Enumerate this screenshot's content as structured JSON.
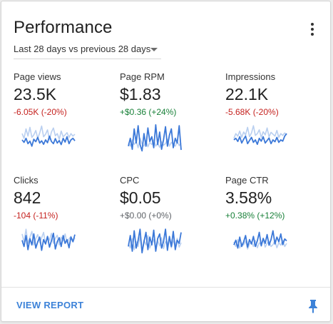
{
  "card": {
    "title": "Performance",
    "menu_icon": "more-vert-icon",
    "date_range": {
      "selected": "Last 28 days vs previous 28 days",
      "icon": "dropdown-caret-icon"
    }
  },
  "colors": {
    "current_series": "#3b78d8",
    "previous_series": "#b9cff0",
    "negative_change": "#c5221f",
    "positive_change": "#188038",
    "neutral_change": "#5f6368",
    "link": "#3c82d8"
  },
  "metrics": [
    {
      "key": "page_views",
      "label": "Page views",
      "value": "23.5K",
      "change": "-6.05K (-20%)",
      "trend": "negative",
      "sparkline": {
        "current": [
          0.5,
          0.42,
          0.55,
          0.38,
          0.46,
          0.3,
          0.52,
          0.44,
          0.58,
          0.4,
          0.47,
          0.36,
          0.5,
          0.41,
          0.62,
          0.45,
          0.38,
          0.54,
          0.4,
          0.48,
          0.35,
          0.55,
          0.43,
          0.6,
          0.38,
          0.5,
          0.55,
          0.47
        ],
        "previous": [
          0.7,
          0.55,
          0.85,
          0.62,
          0.9,
          0.58,
          0.66,
          0.8,
          0.55,
          0.72,
          0.94,
          0.6,
          0.68,
          0.82,
          0.5,
          0.75,
          0.88,
          0.63,
          0.7,
          0.52,
          0.78,
          0.6,
          0.66,
          0.73,
          0.58,
          0.7,
          0.62,
          0.68
        ]
      }
    },
    {
      "key": "page_rpm",
      "label": "Page RPM",
      "value": "$1.83",
      "change": "+$0.36 (+24%)",
      "trend": "positive",
      "sparkline": {
        "current": [
          0.3,
          0.55,
          0.2,
          0.85,
          0.4,
          0.95,
          0.35,
          0.15,
          0.7,
          0.3,
          0.88,
          0.45,
          0.6,
          0.25,
          0.98,
          0.35,
          0.75,
          0.2,
          0.5,
          0.92,
          0.3,
          0.65,
          0.85,
          0.25,
          0.55,
          0.4,
          0.95,
          0.18
        ],
        "previous": [
          0.4,
          0.3,
          0.5,
          0.35,
          0.45,
          0.25,
          0.55,
          0.38,
          0.3,
          0.48,
          0.28,
          0.42,
          0.35,
          0.5,
          0.3,
          0.4,
          0.26,
          0.45,
          0.33,
          0.38,
          0.52,
          0.3,
          0.42,
          0.36,
          0.3,
          0.44,
          0.32,
          0.4
        ]
      }
    },
    {
      "key": "impressions",
      "label": "Impressions",
      "value": "22.1K",
      "change": "-5.68K (-20%)",
      "trend": "negative",
      "sparkline": {
        "current": [
          0.5,
          0.55,
          0.45,
          0.6,
          0.4,
          0.52,
          0.62,
          0.38,
          0.48,
          0.58,
          0.42,
          0.5,
          0.36,
          0.55,
          0.46,
          0.6,
          0.4,
          0.48,
          0.56,
          0.38,
          0.5,
          0.44,
          0.58,
          0.42,
          0.5,
          0.46,
          0.62,
          0.7
        ],
        "previous": [
          0.55,
          0.7,
          0.62,
          0.78,
          0.58,
          0.75,
          0.66,
          0.9,
          0.6,
          0.72,
          0.95,
          0.64,
          0.7,
          0.82,
          0.58,
          0.76,
          0.66,
          0.88,
          0.6,
          0.74,
          0.68,
          0.62,
          0.8,
          0.58,
          0.7,
          0.64,
          0.72,
          0.66
        ]
      }
    },
    {
      "key": "clicks",
      "label": "Clicks",
      "value": "842",
      "change": "-104 (-11%)",
      "trend": "negative",
      "sparkline": {
        "current": [
          0.6,
          0.4,
          0.75,
          0.3,
          0.65,
          0.45,
          0.8,
          0.35,
          0.55,
          0.7,
          0.28,
          0.62,
          0.48,
          0.72,
          0.38,
          0.58,
          0.82,
          0.32,
          0.55,
          0.68,
          0.4,
          0.75,
          0.5,
          0.62,
          0.36,
          0.7,
          0.55,
          0.78
        ],
        "previous": [
          0.8,
          0.55,
          0.95,
          0.5,
          0.7,
          0.88,
          0.45,
          0.65,
          0.78,
          0.52,
          0.68,
          0.85,
          0.48,
          0.72,
          0.6,
          0.82,
          0.5,
          0.66,
          0.76,
          0.45,
          0.7,
          0.58,
          0.8,
          0.52,
          0.64,
          0.72,
          0.56,
          0.68
        ]
      }
    },
    {
      "key": "cpc",
      "label": "CPC",
      "value": "$0.05",
      "change": "+$0.00 (+0%)",
      "trend": "neutral",
      "sparkline": {
        "current": [
          0.4,
          0.75,
          0.25,
          0.9,
          0.35,
          0.6,
          0.95,
          0.2,
          0.55,
          0.85,
          0.3,
          0.7,
          0.45,
          0.92,
          0.25,
          0.65,
          0.8,
          0.35,
          0.55,
          0.95,
          0.28,
          0.72,
          0.4,
          0.88,
          0.3,
          0.6,
          0.5,
          0.85
        ],
        "previous": [
          0.5,
          0.35,
          0.65,
          0.3,
          0.55,
          0.4,
          0.7,
          0.28,
          0.6,
          0.45,
          0.75,
          0.35,
          0.52,
          0.62,
          0.3,
          0.58,
          0.42,
          0.68,
          0.33,
          0.55,
          0.47,
          0.62,
          0.36,
          0.58,
          0.44,
          0.66,
          0.38,
          0.52
        ]
      }
    },
    {
      "key": "page_ctr",
      "label": "Page CTR",
      "value": "3.58%",
      "change": "+0.38% (+12%)",
      "trend": "positive",
      "sparkline": {
        "current": [
          0.45,
          0.6,
          0.35,
          0.7,
          0.4,
          0.55,
          0.75,
          0.38,
          0.62,
          0.48,
          0.72,
          0.4,
          0.58,
          0.85,
          0.42,
          0.66,
          0.5,
          0.78,
          0.44,
          0.62,
          0.9,
          0.48,
          0.7,
          0.55,
          0.8,
          0.46,
          0.64,
          0.58
        ],
        "previous": [
          0.55,
          0.4,
          0.62,
          0.35,
          0.5,
          0.45,
          0.58,
          0.32,
          0.48,
          0.55,
          0.4,
          0.6,
          0.36,
          0.52,
          0.44,
          0.62,
          0.38,
          0.5,
          0.56,
          0.4,
          0.46,
          0.58,
          0.36,
          0.52,
          0.44,
          0.6,
          0.4,
          0.5
        ]
      }
    }
  ],
  "footer": {
    "view_report_label": "VIEW REPORT",
    "pin_icon": "pin-icon"
  }
}
